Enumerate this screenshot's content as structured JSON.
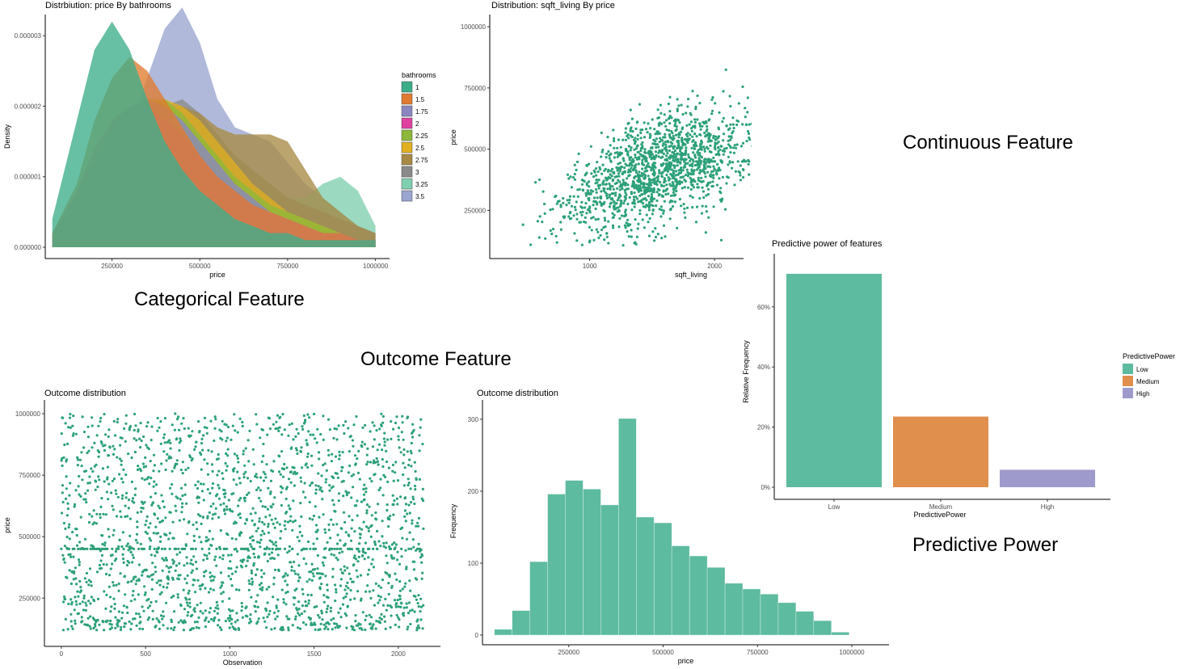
{
  "annotations": {
    "categorical": "Categorical Feature",
    "continuous": "Continuous Feature",
    "outcome": "Outcome Feature",
    "predictive": "Predictive Power"
  },
  "chart_data": [
    {
      "id": "density",
      "type": "area",
      "title": "Distrbiution: price By bathrooms",
      "xlabel": "price",
      "ylabel": "Density",
      "xlim": [
        80000,
        1000000
      ],
      "ylim": [
        0,
        3.3e-06
      ],
      "xticks": [
        250000,
        500000,
        750000,
        1000000
      ],
      "xtick_labels": [
        "250000",
        "500000",
        "750000",
        "1000000"
      ],
      "yticks": [
        0,
        1e-06,
        2e-06,
        3e-06
      ],
      "ytick_labels": [
        "0.000000",
        "0.000001",
        "0.000002",
        "0.000003"
      ],
      "legend_title": "bathrooms",
      "legend_position": "right",
      "x": [
        80000,
        150000,
        200000,
        250000,
        300000,
        350000,
        400000,
        450000,
        500000,
        550000,
        600000,
        650000,
        700000,
        750000,
        800000,
        850000,
        900000,
        950000,
        1000000
      ],
      "series": [
        {
          "name": "3.5",
          "color": "#9AA5D0",
          "values": [
            1e-07,
            3e-07,
            6e-07,
            1.1e-06,
            1.7e-06,
            2.4e-06,
            3.1e-06,
            3.4e-06,
            2.9e-06,
            2.1e-06,
            1.7e-06,
            1.6e-06,
            1.5e-06,
            1.2e-06,
            9e-07,
            7e-07,
            5e-07,
            3e-07,
            2e-07
          ]
        },
        {
          "name": "3.25",
          "color": "#7FD0B0",
          "values": [
            1e-07,
            2e-07,
            4e-07,
            7e-07,
            1.1e-06,
            1.5e-06,
            1.8e-06,
            1.9e-06,
            1.8e-06,
            1.6e-06,
            1.3e-06,
            1.1e-06,
            9e-07,
            7e-07,
            7e-07,
            9e-07,
            1e-06,
            8e-07,
            3e-07
          ]
        },
        {
          "name": "3",
          "color": "#8A8A8A",
          "values": [
            1e-07,
            3e-07,
            6e-07,
            1e-06,
            1.4e-06,
            1.8e-06,
            2e-06,
            2.1e-06,
            1.9e-06,
            1.6e-06,
            1.3e-06,
            1.1e-06,
            9e-07,
            7e-07,
            6e-07,
            5e-07,
            4e-07,
            3e-07,
            2e-07
          ]
        },
        {
          "name": "2.75",
          "color": "#A88A45",
          "values": [
            1e-07,
            4e-07,
            8e-07,
            1.2e-06,
            1.6e-06,
            1.9e-06,
            2e-06,
            2e-06,
            1.9e-06,
            1.7e-06,
            1.6e-06,
            1.6e-06,
            1.6e-06,
            1.5e-06,
            1.1e-06,
            7e-07,
            5e-07,
            3e-07,
            2e-07
          ]
        },
        {
          "name": "2.5",
          "color": "#E0B020",
          "values": [
            1e-07,
            5e-07,
            9e-07,
            1.4e-06,
            1.8e-06,
            2e-06,
            2.1e-06,
            2e-06,
            1.8e-06,
            1.5e-06,
            1.2e-06,
            9e-07,
            7e-07,
            5e-07,
            4e-07,
            3e-07,
            2e-07,
            1e-07,
            1e-07
          ]
        },
        {
          "name": "2.25",
          "color": "#8DB83A",
          "values": [
            2e-07,
            6e-07,
            1e-06,
            1.5e-06,
            1.9e-06,
            2.1e-06,
            2.1e-06,
            1.9e-06,
            1.6e-06,
            1.3e-06,
            1e-06,
            8e-07,
            6e-07,
            5e-07,
            4e-07,
            3e-07,
            2e-07,
            1e-07,
            1e-07
          ]
        },
        {
          "name": "2",
          "color": "#E040A0",
          "values": [
            2e-07,
            8e-07,
            1.4e-06,
            1.8e-06,
            2e-06,
            2e-06,
            1.8e-06,
            1.6e-06,
            1.3e-06,
            1e-06,
            8e-07,
            6e-07,
            5e-07,
            4e-07,
            3e-07,
            2e-07,
            2e-07,
            1e-07,
            1e-07
          ]
        },
        {
          "name": "1.75",
          "color": "#8A86C0",
          "values": [
            2e-07,
            7e-07,
            1.2e-06,
            1.7e-06,
            2e-06,
            2.1e-06,
            2e-06,
            1.8e-06,
            1.5e-06,
            1.2e-06,
            9e-07,
            7e-07,
            5e-07,
            4e-07,
            3e-07,
            2e-07,
            2e-07,
            1e-07,
            1e-07
          ]
        },
        {
          "name": "1.5",
          "color": "#E07B30",
          "values": [
            2e-07,
            9e-07,
            1.8e-06,
            2.4e-06,
            2.7e-06,
            2.5e-06,
            2.1e-06,
            1.7e-06,
            1.3e-06,
            1e-06,
            8e-07,
            6e-07,
            5e-07,
            4e-07,
            3e-07,
            2e-07,
            2e-07,
            1e-07,
            1e-07
          ]
        },
        {
          "name": "1",
          "color": "#3DAE8A",
          "values": [
            4e-07,
            1.8e-06,
            2.8e-06,
            3.2e-06,
            2.8e-06,
            2.1e-06,
            1.5e-06,
            1.1e-06,
            8e-07,
            6e-07,
            4e-07,
            3e-07,
            2e-07,
            2e-07,
            1e-07,
            1e-07,
            1e-07,
            1e-07,
            1e-07
          ]
        }
      ]
    },
    {
      "id": "scatter-sqft",
      "type": "scatter",
      "title": "Distribution: sqft_living By price",
      "xlabel": "sqft_living",
      "ylabel": "price",
      "xlim": [
        200,
        3300
      ],
      "ylim": [
        80000,
        1010000
      ],
      "xticks": [
        1000,
        2000
      ],
      "xtick_labels": [
        "1000",
        "2000"
      ],
      "yticks": [
        250000,
        500000,
        750000,
        1000000
      ],
      "ytick_labels": [
        "250000",
        "500000",
        "750000",
        "1000000"
      ],
      "color": "#2CA07A"
    },
    {
      "id": "predictive",
      "type": "bar",
      "title": "Predictive power of features",
      "xlabel": "PredictivePower",
      "ylabel": "Relative Frequency",
      "categories": [
        "Low",
        "Medium",
        "High"
      ],
      "values": [
        0.71,
        0.235,
        0.058
      ],
      "colors": [
        "#5DBB9F",
        "#E08F4C",
        "#9F9ACC"
      ],
      "ylim": [
        0,
        0.75
      ],
      "yticks": [
        0,
        0.2,
        0.4,
        0.6
      ],
      "ytick_labels": [
        "0%",
        "20%",
        "40%",
        "60%"
      ],
      "legend_title": "PredictivePower",
      "legend_position": "right"
    },
    {
      "id": "scatter-obs",
      "type": "scatter",
      "title": "Outcome distribution",
      "xlabel": "Observation",
      "ylabel": "price",
      "xlim": [
        -100,
        2250
      ],
      "ylim": [
        80000,
        1010000
      ],
      "xticks": [
        0,
        500,
        1000,
        1500,
        2000
      ],
      "xtick_labels": [
        "0",
        "500",
        "1000",
        "1500",
        "2000"
      ],
      "yticks": [
        250000,
        500000,
        750000,
        1000000
      ],
      "ytick_labels": [
        "250000",
        "500000",
        "750000",
        "1000000"
      ],
      "color": "#2CA07A"
    },
    {
      "id": "histogram",
      "type": "bar",
      "title": "Outcome distribution",
      "xlabel": "price",
      "ylabel": "Frequency",
      "bin_width": 47000,
      "bin_start": 53000,
      "values": [
        8,
        34,
        102,
        196,
        215,
        203,
        181,
        301,
        164,
        156,
        124,
        110,
        94,
        72,
        64,
        57,
        45,
        33,
        20,
        4
      ],
      "xlim": [
        30000,
        1060000
      ],
      "ylim": [
        0,
        310
      ],
      "xticks": [
        250000,
        500000,
        750000,
        1000000
      ],
      "xtick_labels": [
        "250000",
        "500000",
        "750000",
        "1000000"
      ],
      "yticks": [
        0,
        100,
        200,
        300
      ],
      "ytick_labels": [
        "0",
        "100",
        "200",
        "300"
      ],
      "color": "#5DBB9F"
    }
  ]
}
